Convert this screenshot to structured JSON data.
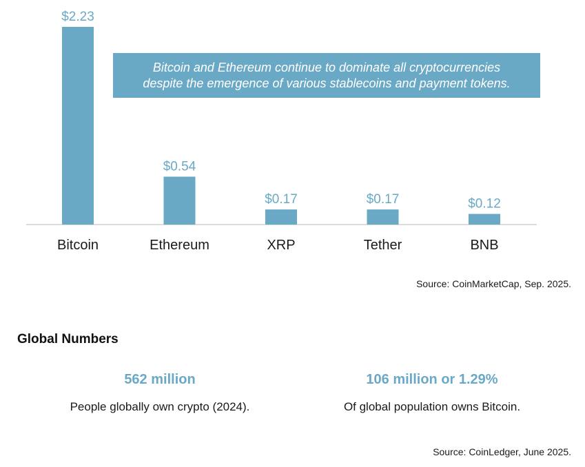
{
  "chart_data": {
    "type": "bar",
    "categories": [
      "Bitcoin",
      "Ethereum",
      "XRP",
      "Tether",
      "BNB"
    ],
    "values": [
      2.23,
      0.54,
      0.17,
      0.17,
      0.12
    ],
    "data_labels": [
      "$2.23",
      "$0.54",
      "$0.17",
      "$0.17",
      "$0.12"
    ],
    "title": "",
    "xlabel": "",
    "ylabel": "",
    "bar_color": "#6aa9c6",
    "label_color": "#6aa9c6",
    "grid": false,
    "legend": "none"
  },
  "callout": {
    "line1": "Bitcoin and Ethereum continue to dominate all cryptocurrencies",
    "line2": "despite the emergence of various stablecoins and payment tokens."
  },
  "sources": {
    "chart": "Source: CoinMarketCap, Sep. 2025.",
    "numbers": "Source: CoinLedger, June 2025."
  },
  "global_numbers": {
    "title": "Global Numbers",
    "stats": [
      {
        "value": "562 million",
        "description": "People globally own crypto (2024)."
      },
      {
        "value": "106 million or 1.29%",
        "description": "Of global population owns Bitcoin."
      }
    ]
  },
  "colors": {
    "accent": "#6aa9c6",
    "baseline": "#d0d0d0"
  }
}
